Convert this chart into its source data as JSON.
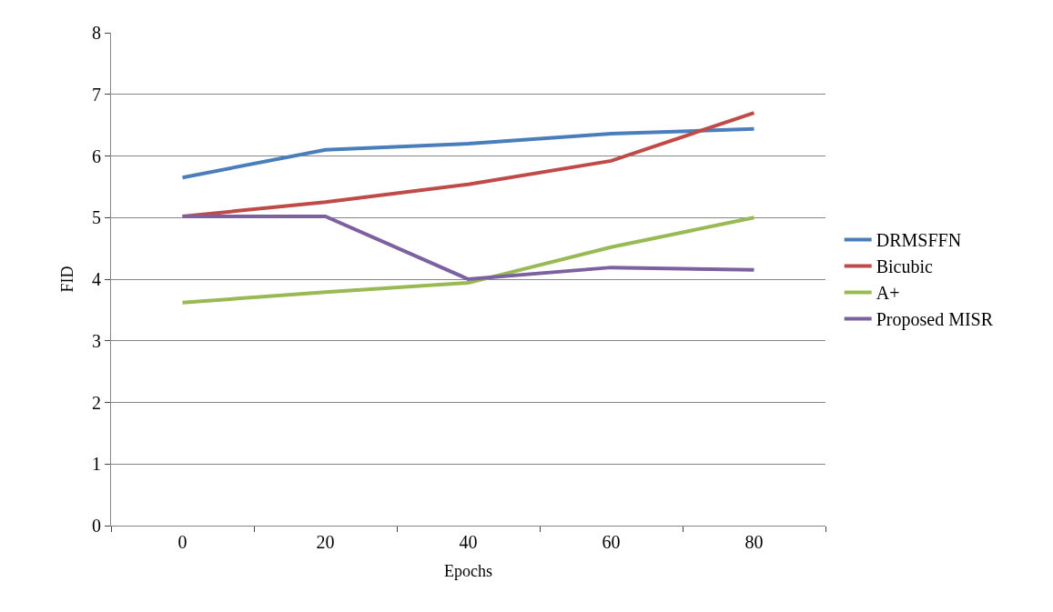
{
  "chart_data": {
    "type": "line",
    "xlabel": "Epochs",
    "ylabel": "FID",
    "categories": [
      "0",
      "20",
      "40",
      "60",
      "80"
    ],
    "series": [
      {
        "name": "DRMSFFN",
        "color": "#4a7ebb",
        "values": [
          5.65,
          6.1,
          6.2,
          6.36,
          6.44
        ]
      },
      {
        "name": "Bicubic",
        "color": "#be4b48",
        "values": [
          5.02,
          5.25,
          5.54,
          5.92,
          6.7
        ]
      },
      {
        "name": "A+",
        "color": "#98b954",
        "values": [
          3.62,
          3.79,
          3.94,
          4.52,
          5.0
        ]
      },
      {
        "name": "Proposed MISR",
        "color": "#7d60a0",
        "values": [
          5.02,
          5.02,
          4.0,
          4.19,
          4.15
        ]
      }
    ],
    "ylim": [
      0,
      8
    ],
    "yticks": [
      0,
      1,
      2,
      3,
      4,
      5,
      6,
      7,
      8
    ],
    "grid": "y",
    "legend": "right",
    "marker": "none",
    "line_style": "solid"
  }
}
